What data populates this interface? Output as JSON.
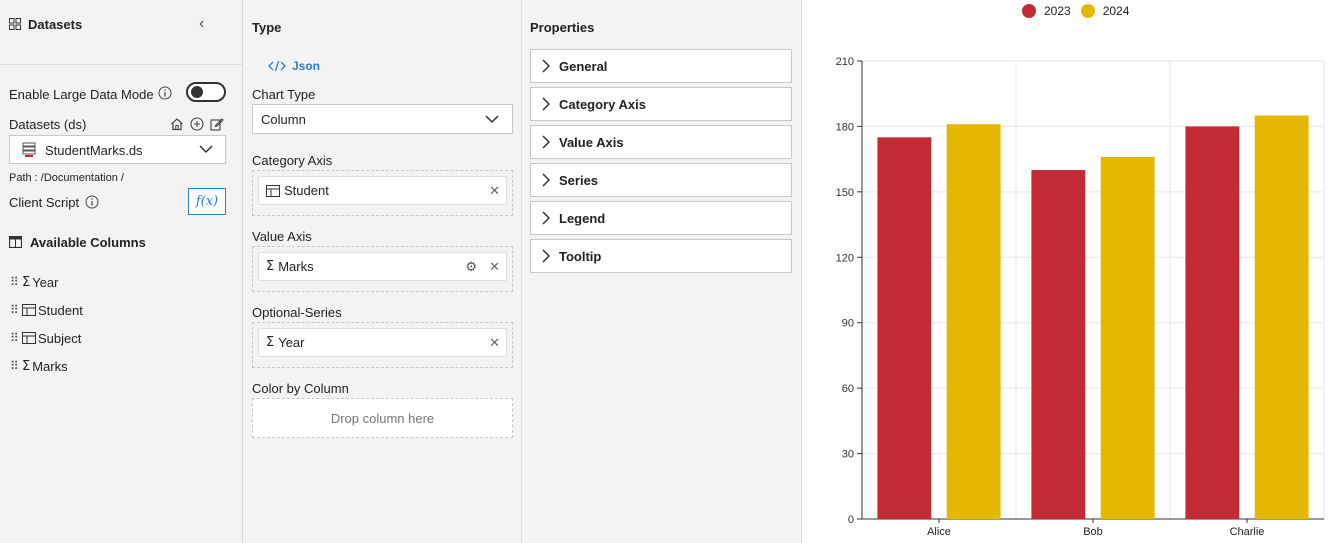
{
  "datasets_panel": {
    "title": "Datasets",
    "large_data_mode_label": "Enable Large Data Mode",
    "large_data_mode_on": false,
    "datasets_label": "Datasets (ds)",
    "selected_dataset": "StudentMarks.ds",
    "path": "Path : /Documentation /",
    "client_script_label": "Client Script",
    "fx_label": "f(x)",
    "available_columns_title": "Available Columns",
    "columns": [
      {
        "name": "Year",
        "kind": "sigma"
      },
      {
        "name": "Student",
        "kind": "table"
      },
      {
        "name": "Subject",
        "kind": "table"
      },
      {
        "name": "Marks",
        "kind": "sigma"
      }
    ]
  },
  "type_panel": {
    "title": "Type",
    "json_link": "Json",
    "chart_type_label": "Chart Type",
    "chart_type_value": "Column",
    "category_axis_label": "Category Axis",
    "category_axis_value": "Student",
    "value_axis_label": "Value Axis",
    "value_axis_value": "Marks",
    "optional_series_label": "Optional-Series",
    "optional_series_value": "Year",
    "color_by_label": "Color by Column",
    "color_by_placeholder": "Drop column here"
  },
  "properties_panel": {
    "title": "Properties",
    "sections": [
      "General",
      "Category Axis",
      "Value Axis",
      "Series",
      "Legend",
      "Tooltip"
    ]
  },
  "colors": {
    "series_2023": "#c22b33",
    "series_2024": "#e5b800",
    "accent": "#2b7cd3"
  },
  "chart_data": {
    "type": "bar",
    "categories": [
      "Alice",
      "Bob",
      "Charlie"
    ],
    "series": [
      {
        "name": "2023",
        "values": [
          175,
          160,
          180
        ]
      },
      {
        "name": "2024",
        "values": [
          181,
          166,
          185
        ]
      }
    ],
    "y_ticks": [
      "0",
      "30",
      "60",
      "90",
      "120",
      "150",
      "180",
      "210"
    ],
    "ylim": [
      0,
      210
    ],
    "legend_position": "top",
    "grid": true
  }
}
